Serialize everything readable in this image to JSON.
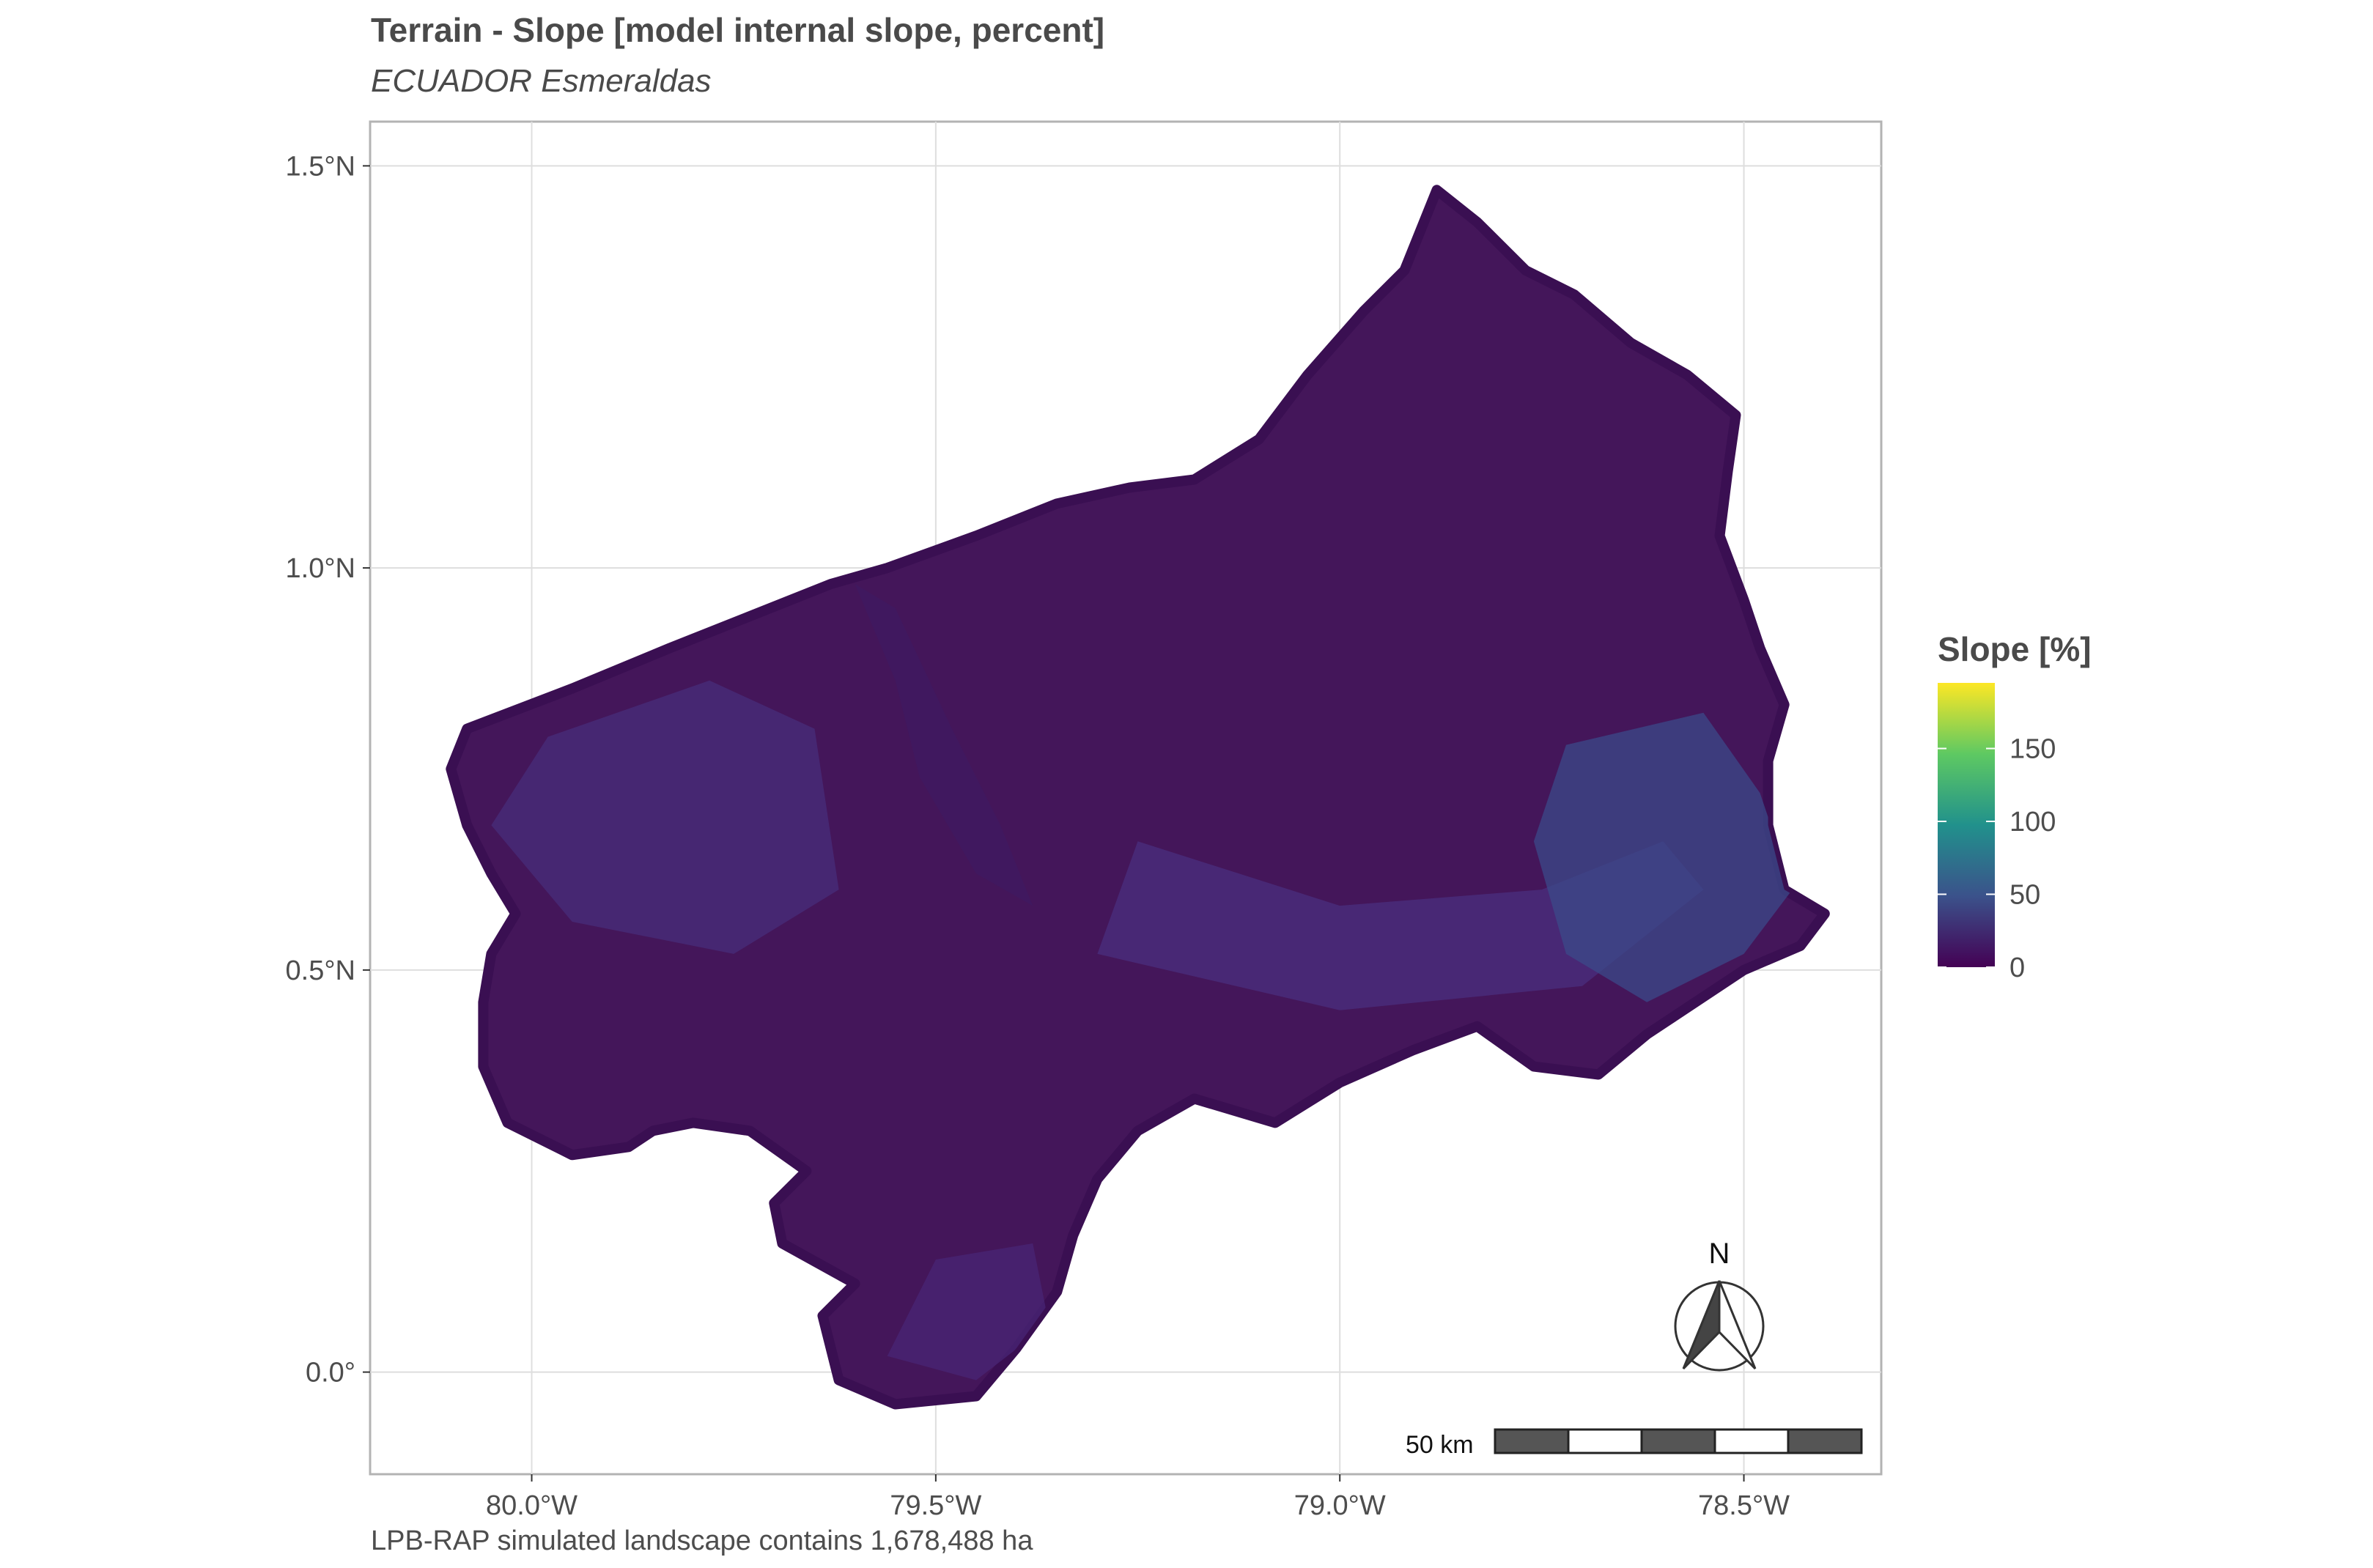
{
  "title": "Terrain - Slope [model internal slope, percent]",
  "subtitle": "ECUADOR Esmeraldas",
  "caption": "LPB-RAP simulated landscape contains 1,678,488 ha",
  "chart_data": {
    "type": "heatmap",
    "title": "Terrain - Slope [model internal slope, percent]",
    "subtitle": "ECUADOR Esmeraldas",
    "x_ticks": [
      {
        "value": -80.0,
        "label": "80.0°W"
      },
      {
        "value": -79.5,
        "label": "79.5°W"
      },
      {
        "value": -79.0,
        "label": "79.0°W"
      },
      {
        "value": -78.5,
        "label": "78.5°W"
      }
    ],
    "y_ticks": [
      {
        "value": 1.5,
        "label": "1.5°N"
      },
      {
        "value": 1.0,
        "label": "1.0°N"
      },
      {
        "value": 0.5,
        "label": "0.5°N"
      },
      {
        "value": 0.0,
        "label": "0.0°"
      }
    ],
    "xlim": [
      -80.2,
      -78.33
    ],
    "ylim": [
      -0.127,
      1.555
    ],
    "grid": true,
    "legend": {
      "title": "Slope [%]",
      "placement": "right",
      "min": 0,
      "max": 195,
      "ticks": [
        {
          "value": 0,
          "label": "0"
        },
        {
          "value": 50,
          "label": "50"
        },
        {
          "value": 100,
          "label": "100"
        },
        {
          "value": 150,
          "label": "150"
        }
      ],
      "colors": [
        "#440154",
        "#3b528b",
        "#21918c",
        "#5ec962",
        "#fde725"
      ]
    },
    "region": {
      "name": "Esmeraldas",
      "fill": "#44165a",
      "outline": [
        [
          -79.88,
          0.28
        ],
        [
          -79.95,
          0.27
        ],
        [
          -80.03,
          0.31
        ],
        [
          -80.06,
          0.38
        ],
        [
          -80.06,
          0.46
        ],
        [
          -80.05,
          0.52
        ],
        [
          -80.02,
          0.57
        ],
        [
          -80.05,
          0.62
        ],
        [
          -80.08,
          0.68
        ],
        [
          -80.1,
          0.75
        ],
        [
          -80.08,
          0.8
        ],
        [
          -79.95,
          0.85
        ],
        [
          -79.83,
          0.9
        ],
        [
          -79.73,
          0.94
        ],
        [
          -79.63,
          0.98
        ],
        [
          -79.56,
          1.0
        ],
        [
          -79.45,
          1.04
        ],
        [
          -79.35,
          1.08
        ],
        [
          -79.26,
          1.1
        ],
        [
          -79.18,
          1.11
        ],
        [
          -79.1,
          1.16
        ],
        [
          -79.04,
          1.24
        ],
        [
          -78.97,
          1.32
        ],
        [
          -78.92,
          1.37
        ],
        [
          -78.88,
          1.47
        ],
        [
          -78.83,
          1.43
        ],
        [
          -78.77,
          1.37
        ],
        [
          -78.71,
          1.34
        ],
        [
          -78.64,
          1.28
        ],
        [
          -78.57,
          1.24
        ],
        [
          -78.51,
          1.19
        ],
        [
          -78.52,
          1.12
        ],
        [
          -78.53,
          1.04
        ],
        [
          -78.5,
          0.96
        ],
        [
          -78.48,
          0.9
        ],
        [
          -78.45,
          0.83
        ],
        [
          -78.47,
          0.76
        ],
        [
          -78.47,
          0.68
        ],
        [
          -78.45,
          0.6
        ],
        [
          -78.4,
          0.57
        ],
        [
          -78.43,
          0.53
        ],
        [
          -78.5,
          0.5
        ],
        [
          -78.56,
          0.46
        ],
        [
          -78.62,
          0.42
        ],
        [
          -78.68,
          0.37
        ],
        [
          -78.76,
          0.38
        ],
        [
          -78.83,
          0.43
        ],
        [
          -78.91,
          0.4
        ],
        [
          -79.0,
          0.36
        ],
        [
          -79.08,
          0.31
        ],
        [
          -79.18,
          0.34
        ],
        [
          -79.25,
          0.3
        ],
        [
          -79.3,
          0.24
        ],
        [
          -79.33,
          0.17
        ],
        [
          -79.35,
          0.1
        ],
        [
          -79.4,
          0.03
        ],
        [
          -79.45,
          -0.03
        ],
        [
          -79.55,
          -0.04
        ],
        [
          -79.62,
          -0.01
        ],
        [
          -79.64,
          0.07
        ],
        [
          -79.6,
          0.11
        ],
        [
          -79.69,
          0.16
        ],
        [
          -79.7,
          0.21
        ],
        [
          -79.66,
          0.25
        ],
        [
          -79.73,
          0.3
        ],
        [
          -79.8,
          0.31
        ],
        [
          -79.85,
          0.3
        ]
      ],
      "shades": [
        {
          "color": "#4a2f7f",
          "points": [
            [
              -79.25,
              0.66
            ],
            [
              -79.0,
              0.58
            ],
            [
              -78.75,
              0.6
            ],
            [
              -78.6,
              0.66
            ],
            [
              -78.55,
              0.6
            ],
            [
              -78.7,
              0.48
            ],
            [
              -79.0,
              0.45
            ],
            [
              -79.3,
              0.52
            ]
          ]
        },
        {
          "color": "#3b4a8a",
          "points": [
            [
              -78.72,
              0.78
            ],
            [
              -78.55,
              0.82
            ],
            [
              -78.48,
              0.72
            ],
            [
              -78.44,
              0.6
            ],
            [
              -78.5,
              0.52
            ],
            [
              -78.62,
              0.46
            ],
            [
              -78.72,
              0.52
            ],
            [
              -78.76,
              0.66
            ]
          ]
        },
        {
          "color": "#472d7b",
          "points": [
            [
              -79.98,
              0.79
            ],
            [
              -79.78,
              0.86
            ],
            [
              -79.65,
              0.8
            ],
            [
              -79.62,
              0.6
            ],
            [
              -79.75,
              0.52
            ],
            [
              -79.95,
              0.56
            ],
            [
              -80.05,
              0.68
            ]
          ]
        },
        {
          "color": "#3f1a62",
          "points": [
            [
              -79.6,
              0.98
            ],
            [
              -79.55,
              0.86
            ],
            [
              -79.52,
              0.74
            ],
            [
              -79.45,
              0.62
            ],
            [
              -79.38,
              0.58
            ],
            [
              -79.42,
              0.68
            ],
            [
              -79.48,
              0.8
            ],
            [
              -79.55,
              0.95
            ]
          ]
        },
        {
          "color": "#482576",
          "points": [
            [
              -79.5,
              0.14
            ],
            [
              -79.38,
              0.16
            ],
            [
              -79.36,
              0.06
            ],
            [
              -79.45,
              -0.01
            ],
            [
              -79.56,
              0.02
            ]
          ]
        }
      ]
    },
    "scalebar": {
      "label": "50 km"
    },
    "north_arrow": {
      "label": "N"
    }
  }
}
